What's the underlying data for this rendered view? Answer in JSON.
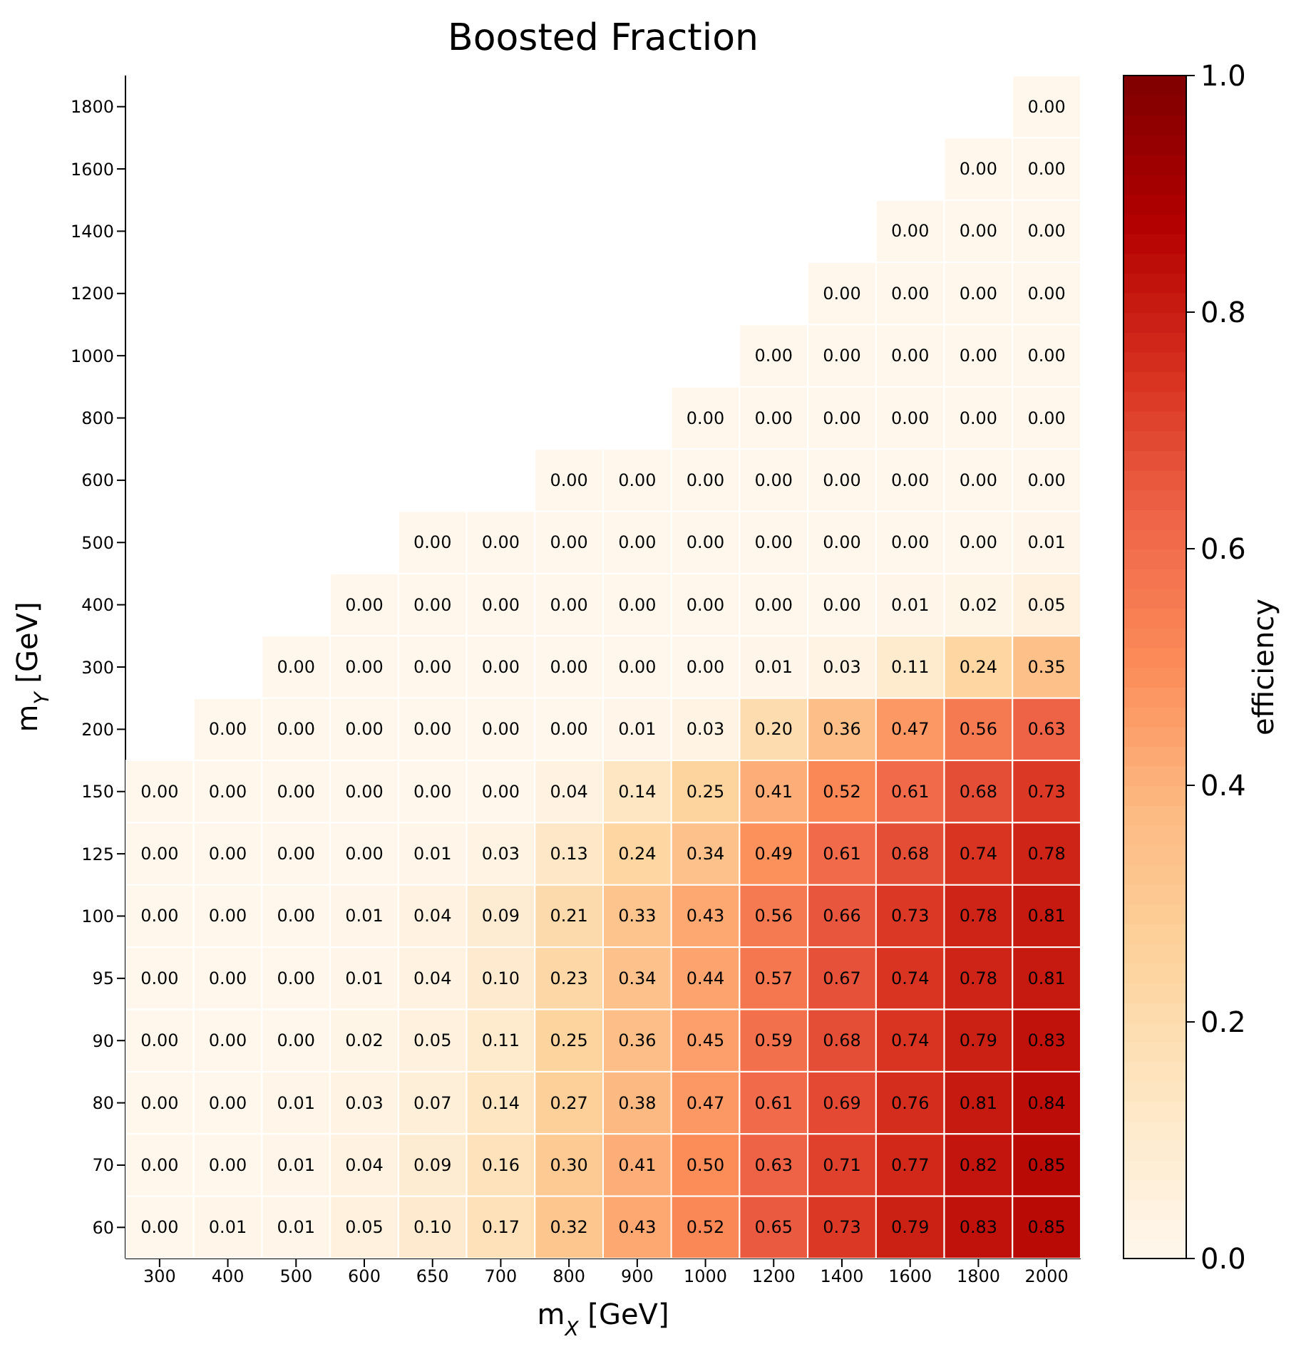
{
  "chart_data": {
    "type": "heatmap",
    "title": "Boosted Fraction",
    "xlabel": "m$_{X}$ [GeV]",
    "ylabel": "m$_{Y}$ [GeV]",
    "clabel": "efficiency",
    "categories": [
      "300",
      "400",
      "500",
      "600",
      "650",
      "700",
      "800",
      "900",
      "1000",
      "1200",
      "1400",
      "1600",
      "1800",
      "2000"
    ],
    "y_categories": [
      "1800",
      "1600",
      "1400",
      "1200",
      "1000",
      "800",
      "600",
      "500",
      "400",
      "300",
      "200",
      "150",
      "125",
      "100",
      "95",
      "90",
      "80",
      "70",
      "60"
    ],
    "clim": [
      0,
      1
    ],
    "cticks": [
      {
        "value": 0,
        "label": "0.0"
      },
      0.2,
      0.4,
      0.6,
      0.8,
      {
        "value": 1,
        "label": "1.0"
      }
    ],
    "data_labels": true,
    "cells": [
      [
        null,
        null,
        null,
        null,
        null,
        null,
        null,
        null,
        null,
        null,
        null,
        null,
        null,
        0
      ],
      [
        null,
        null,
        null,
        null,
        null,
        null,
        null,
        null,
        null,
        null,
        null,
        null,
        0,
        0
      ],
      [
        null,
        null,
        null,
        null,
        null,
        null,
        null,
        null,
        null,
        null,
        null,
        0,
        0,
        0
      ],
      [
        null,
        null,
        null,
        null,
        null,
        null,
        null,
        null,
        null,
        null,
        0,
        0,
        0,
        0
      ],
      [
        null,
        null,
        null,
        null,
        null,
        null,
        null,
        null,
        null,
        0,
        0,
        0,
        0,
        0
      ],
      [
        null,
        null,
        null,
        null,
        null,
        null,
        null,
        null,
        0,
        0,
        0,
        0,
        0,
        0
      ],
      [
        null,
        null,
        null,
        null,
        null,
        null,
        0,
        0,
        0,
        0,
        0,
        0,
        0,
        0
      ],
      [
        null,
        null,
        null,
        null,
        0,
        0,
        0,
        0,
        0,
        0,
        0,
        0,
        0,
        0.01
      ],
      [
        null,
        null,
        null,
        0,
        0,
        0,
        0,
        0,
        0,
        0,
        0,
        0.01,
        0.02,
        0.05
      ],
      [
        null,
        null,
        0,
        0,
        0,
        0,
        0,
        0,
        0,
        0.01,
        0.03,
        0.11,
        0.24,
        0.35
      ],
      [
        null,
        0,
        0,
        0,
        0,
        0,
        0,
        0.01,
        0.03,
        0.2,
        0.36,
        0.47,
        0.56,
        0.63
      ],
      [
        0,
        0,
        0,
        0,
        0,
        0,
        0.04,
        0.14,
        0.25,
        0.41,
        0.52,
        0.61,
        0.68,
        0.73
      ],
      [
        0,
        0,
        0,
        0,
        0.01,
        0.03,
        0.13,
        0.24,
        0.34,
        0.49,
        0.61,
        0.68,
        0.74,
        0.78
      ],
      [
        0,
        0,
        0,
        0.01,
        0.04,
        0.09,
        0.21,
        0.33,
        0.43,
        0.56,
        0.66,
        0.73,
        0.78,
        0.81
      ],
      [
        0,
        0,
        0,
        0.01,
        0.04,
        0.1,
        0.23,
        0.34,
        0.44,
        0.57,
        0.67,
        0.74,
        0.78,
        0.81
      ],
      [
        0,
        0,
        0,
        0.02,
        0.05,
        0.11,
        0.25,
        0.36,
        0.45,
        0.59,
        0.68,
        0.74,
        0.79,
        0.83
      ],
      [
        0,
        0,
        0.01,
        0.03,
        0.07,
        0.14,
        0.27,
        0.38,
        0.47,
        0.61,
        0.69,
        0.76,
        0.81,
        0.84
      ],
      [
        0,
        0,
        0.01,
        0.04,
        0.09,
        0.16,
        0.3,
        0.41,
        0.5,
        0.63,
        0.71,
        0.77,
        0.82,
        0.85
      ],
      [
        0,
        0.01,
        0.01,
        0.05,
        0.1,
        0.17,
        0.32,
        0.43,
        0.52,
        0.65,
        0.73,
        0.79,
        0.83,
        0.85
      ]
    ],
    "cell_labels": [
      [
        null,
        null,
        null,
        null,
        null,
        null,
        null,
        null,
        null,
        null,
        null,
        null,
        null,
        "0.00"
      ],
      [
        null,
        null,
        null,
        null,
        null,
        null,
        null,
        null,
        null,
        null,
        null,
        null,
        "0.00",
        "0.00"
      ],
      [
        null,
        null,
        null,
        null,
        null,
        null,
        null,
        null,
        null,
        null,
        null,
        "0.00",
        "0.00",
        "0.00"
      ],
      [
        null,
        null,
        null,
        null,
        null,
        null,
        null,
        null,
        null,
        null,
        "0.00",
        "0.00",
        "0.00",
        "0.00"
      ],
      [
        null,
        null,
        null,
        null,
        null,
        null,
        null,
        null,
        null,
        "0.00",
        "0.00",
        "0.00",
        "0.00",
        "0.00"
      ],
      [
        null,
        null,
        null,
        null,
        null,
        null,
        null,
        null,
        "0.00",
        "0.00",
        "0.00",
        "0.00",
        "0.00",
        "0.00"
      ],
      [
        null,
        null,
        null,
        null,
        null,
        null,
        "0.00",
        "0.00",
        "0.00",
        "0.00",
        "0.00",
        "0.00",
        "0.00",
        "0.00"
      ],
      [
        null,
        null,
        null,
        null,
        "0.00",
        "0.00",
        "0.00",
        "0.00",
        "0.00",
        "0.00",
        "0.00",
        "0.00",
        "0.00",
        "0.01"
      ],
      [
        null,
        null,
        null,
        "0.00",
        "0.00",
        "0.00",
        "0.00",
        "0.00",
        "0.00",
        "0.00",
        "0.00",
        "0.01",
        "0.02",
        "0.05"
      ],
      [
        null,
        null,
        "0.00",
        "0.00",
        "0.00",
        "0.00",
        "0.00",
        "0.00",
        "0.00",
        "0.01",
        "0.03",
        "0.11",
        "0.24",
        "0.35"
      ],
      [
        null,
        "0.00",
        "0.00",
        "0.00",
        "0.00",
        "0.00",
        "0.00",
        "0.01",
        "0.03",
        "0.20",
        "0.36",
        "0.47",
        "0.56",
        "0.63"
      ],
      [
        "0.00",
        "0.00",
        "0.00",
        "0.00",
        "0.00",
        "0.00",
        "0.04",
        "0.14",
        "0.25",
        "0.41",
        "0.52",
        "0.61",
        "0.68",
        "0.73"
      ],
      [
        "0.00",
        "0.00",
        "0.00",
        "0.00",
        "0.01",
        "0.03",
        "0.13",
        "0.24",
        "0.34",
        "0.49",
        "0.61",
        "0.68",
        "0.74",
        "0.78"
      ],
      [
        "0.00",
        "0.00",
        "0.00",
        "0.01",
        "0.04",
        "0.09",
        "0.21",
        "0.33",
        "0.43",
        "0.56",
        "0.66",
        "0.73",
        "0.78",
        "0.81"
      ],
      [
        "0.00",
        "0.00",
        "0.00",
        "0.01",
        "0.04",
        "0.10",
        "0.23",
        "0.34",
        "0.44",
        "0.57",
        "0.67",
        "0.74",
        "0.78",
        "0.81"
      ],
      [
        "0.00",
        "0.00",
        "0.00",
        "0.02",
        "0.05",
        "0.11",
        "0.25",
        "0.36",
        "0.45",
        "0.59",
        "0.68",
        "0.74",
        "0.79",
        "0.83"
      ],
      [
        "0.00",
        "0.00",
        "0.01",
        "0.03",
        "0.07",
        "0.14",
        "0.27",
        "0.38",
        "0.47",
        "0.61",
        "0.69",
        "0.76",
        "0.81",
        "0.84"
      ],
      [
        "0.00",
        "0.00",
        "0.01",
        "0.04",
        "0.09",
        "0.16",
        "0.30",
        "0.41",
        "0.50",
        "0.63",
        "0.71",
        "0.77",
        "0.82",
        "0.85"
      ],
      [
        "0.00",
        "0.01",
        "0.01",
        "0.05",
        "0.10",
        "0.17",
        "0.32",
        "0.43",
        "0.52",
        "0.65",
        "0.73",
        "0.79",
        "0.83",
        "0.85"
      ]
    ]
  }
}
